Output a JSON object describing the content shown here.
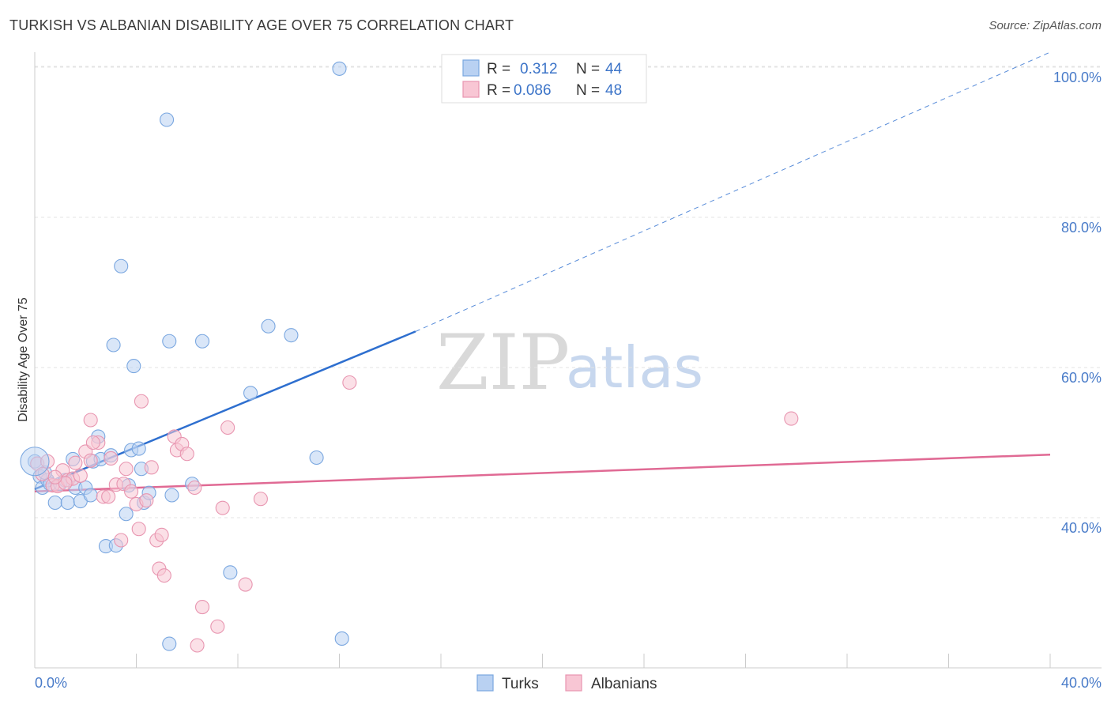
{
  "header": {
    "title": "TURKISH VS ALBANIAN DISABILITY AGE OVER 75 CORRELATION CHART",
    "source": "Source: ZipAtlas.com"
  },
  "watermark": {
    "zip": "ZIP",
    "atlas": "atlas"
  },
  "legend": {
    "items": [
      {
        "r_label": "R =",
        "r_value": "0.312",
        "n_label": "N =",
        "n_value": "44",
        "color": "#a9c6ef"
      },
      {
        "r_label": "R =",
        "r_value": "0.086",
        "n_label": "N =",
        "n_value": "48",
        "color": "#f6b7c9"
      }
    ]
  },
  "bottom_legend": {
    "turks": "Turks",
    "albanians": "Albanians"
  },
  "chart_data": {
    "type": "scatter",
    "title": "TURKISH VS ALBANIAN DISABILITY AGE OVER 75 CORRELATION CHART",
    "xlabel": "",
    "ylabel": "Disability Age Over 75",
    "xlim": [
      0,
      40
    ],
    "ylim": [
      20,
      102
    ],
    "x_tick_labels": [
      "0.0%",
      "40.0%"
    ],
    "y_ticks": [
      40,
      60,
      80,
      100
    ],
    "y_tick_labels": [
      "40.0%",
      "60.0%",
      "80.0%",
      "100.0%"
    ],
    "series": [
      {
        "name": "Turks",
        "color": "#7aa7e0",
        "fill": "#b9d1f2",
        "trend": {
          "x0": 0,
          "y0": 43.8,
          "x1": 15.0,
          "y1": 64.8,
          "dash_to_x": 40.0,
          "dash_to_y": 102.0,
          "color": "#2e6fcf"
        },
        "points": [
          [
            0.0,
            47.5
          ],
          [
            0.2,
            45.5
          ],
          [
            0.3,
            44.0
          ],
          [
            0.5,
            45.0
          ],
          [
            0.6,
            44.5
          ],
          [
            0.8,
            42.0
          ],
          [
            1.0,
            44.5
          ],
          [
            1.2,
            45.0
          ],
          [
            1.3,
            42.0
          ],
          [
            1.5,
            47.8
          ],
          [
            1.6,
            44.0
          ],
          [
            1.8,
            42.2
          ],
          [
            2.0,
            44.0
          ],
          [
            2.2,
            43.0
          ],
          [
            2.3,
            47.5
          ],
          [
            2.5,
            50.8
          ],
          [
            2.6,
            47.8
          ],
          [
            2.8,
            36.2
          ],
          [
            3.0,
            48.3
          ],
          [
            3.1,
            63.0
          ],
          [
            3.2,
            36.3
          ],
          [
            3.4,
            73.5
          ],
          [
            3.6,
            40.5
          ],
          [
            3.7,
            44.3
          ],
          [
            3.8,
            49.0
          ],
          [
            3.9,
            60.2
          ],
          [
            4.1,
            49.2
          ],
          [
            4.2,
            46.5
          ],
          [
            4.3,
            42.0
          ],
          [
            4.5,
            43.3
          ],
          [
            5.2,
            93.0
          ],
          [
            5.3,
            23.2
          ],
          [
            5.3,
            63.5
          ],
          [
            5.4,
            43.0
          ],
          [
            6.2,
            44.5
          ],
          [
            6.6,
            63.5
          ],
          [
            7.7,
            32.7
          ],
          [
            8.5,
            56.6
          ],
          [
            9.2,
            65.5
          ],
          [
            10.1,
            64.3
          ],
          [
            11.1,
            48.0
          ],
          [
            12.0,
            99.8
          ],
          [
            12.1,
            23.9
          ],
          [
            0.4,
            46.0
          ]
        ]
      },
      {
        "name": "Albanians",
        "color": "#e895b0",
        "fill": "#f8c6d4",
        "trend": {
          "x0": 0,
          "y0": 43.5,
          "x1": 40.0,
          "y1": 48.4,
          "color": "#e06a94"
        },
        "points": [
          [
            0.1,
            47.2
          ],
          [
            0.3,
            45.8
          ],
          [
            0.5,
            47.5
          ],
          [
            0.7,
            44.3
          ],
          [
            0.9,
            44.2
          ],
          [
            1.1,
            46.3
          ],
          [
            1.3,
            45.0
          ],
          [
            1.5,
            45.2
          ],
          [
            1.6,
            47.3
          ],
          [
            1.8,
            45.6
          ],
          [
            2.0,
            48.8
          ],
          [
            2.2,
            47.6
          ],
          [
            2.2,
            53.0
          ],
          [
            2.5,
            50.0
          ],
          [
            2.7,
            42.8
          ],
          [
            2.9,
            42.8
          ],
          [
            3.0,
            47.9
          ],
          [
            3.2,
            44.4
          ],
          [
            3.4,
            37.0
          ],
          [
            3.5,
            44.5
          ],
          [
            3.6,
            46.5
          ],
          [
            3.8,
            43.5
          ],
          [
            4.0,
            41.8
          ],
          [
            4.1,
            38.5
          ],
          [
            4.2,
            55.5
          ],
          [
            4.4,
            42.3
          ],
          [
            4.6,
            46.7
          ],
          [
            4.8,
            37.0
          ],
          [
            4.9,
            33.2
          ],
          [
            5.0,
            37.7
          ],
          [
            5.1,
            32.3
          ],
          [
            5.5,
            50.8
          ],
          [
            5.6,
            49.0
          ],
          [
            5.8,
            49.8
          ],
          [
            6.0,
            48.5
          ],
          [
            6.3,
            44.0
          ],
          [
            6.4,
            23.0
          ],
          [
            6.6,
            28.1
          ],
          [
            7.2,
            25.5
          ],
          [
            7.4,
            41.3
          ],
          [
            7.6,
            52.0
          ],
          [
            8.3,
            31.1
          ],
          [
            8.9,
            42.5
          ],
          [
            12.4,
            58.0
          ],
          [
            29.8,
            53.2
          ],
          [
            2.3,
            50.0
          ],
          [
            1.2,
            44.6
          ],
          [
            0.8,
            45.4
          ]
        ]
      }
    ]
  }
}
